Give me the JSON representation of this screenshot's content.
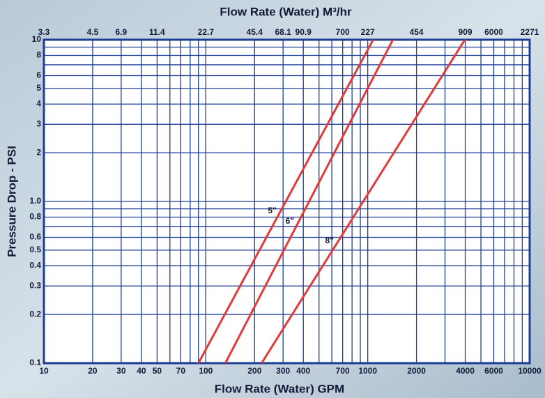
{
  "chart_data": {
    "type": "line",
    "title": "Flow Rate (Water) M³/hr",
    "x_label": "Flow Rate (Water) GPM",
    "y_label": "Pressure Drop - PSI",
    "xscale": "log",
    "yscale": "log",
    "xlim": [
      10,
      10000
    ],
    "ylim": [
      0.1,
      10
    ],
    "xticks": [
      10,
      20,
      30,
      40,
      50,
      70,
      100,
      200,
      300,
      400,
      700,
      1000,
      2000,
      4000,
      6000,
      10000
    ],
    "x_minor_ticks": [
      60,
      80,
      90,
      500,
      600,
      800,
      900,
      3000,
      5000,
      7000,
      8000,
      9000
    ],
    "x2ticks": [
      {
        "value": 10,
        "label": "3.3"
      },
      {
        "value": 20,
        "label": "4.5"
      },
      {
        "value": 30,
        "label": "6.9"
      },
      {
        "value": 50,
        "label": "11.4"
      },
      {
        "value": 100,
        "label": "22.7"
      },
      {
        "value": 200,
        "label": "45.4"
      },
      {
        "value": 300,
        "label": "68.1"
      },
      {
        "value": 400,
        "label": "90.9"
      },
      {
        "value": 700,
        "label": "700"
      },
      {
        "value": 1000,
        "label": "227"
      },
      {
        "value": 2000,
        "label": "454"
      },
      {
        "value": 4000,
        "label": "909"
      },
      {
        "value": 6000,
        "label": "6000"
      },
      {
        "value": 10000,
        "label": "2271"
      }
    ],
    "yticks": [
      0.1,
      0.2,
      0.3,
      0.4,
      0.5,
      0.6,
      0.8,
      {
        "value": 1,
        "label": "1.0"
      },
      2,
      3,
      4,
      5,
      6,
      8,
      10
    ],
    "y_minor_ticks": [
      0.7,
      0.9,
      7,
      9
    ],
    "grid": true,
    "grid_color": "#1c3d96",
    "series": [
      {
        "name": "5\"",
        "color": "#e23a3a",
        "x": [
          90,
          1080
        ],
        "values": [
          0.1,
          10
        ],
        "label_at": [
          257,
          0.87
        ]
      },
      {
        "name": "6\"",
        "color": "#e23a3a",
        "x": [
          132,
          1430
        ],
        "values": [
          0.1,
          10
        ],
        "label_at": [
          330,
          0.75
        ]
      },
      {
        "name": "8\"",
        "color": "#e23a3a",
        "x": [
          221,
          3980
        ],
        "values": [
          0.1,
          10
        ],
        "label_at": [
          580,
          0.57
        ]
      }
    ]
  }
}
